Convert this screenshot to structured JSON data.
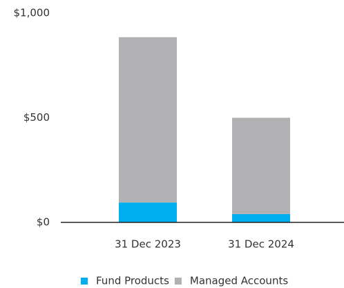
{
  "chart_data": {
    "type": "stacked-bar",
    "categories": [
      "31 Dec 2023",
      "31 Dec 2024"
    ],
    "series": [
      {
        "name": "Fund Products",
        "color": "#00aeef",
        "values": [
          95,
          40
        ]
      },
      {
        "name": "Managed Accounts",
        "color": "#b1b1b4",
        "values": [
          790,
          460
        ]
      }
    ],
    "ylim": [
      0,
      1000
    ],
    "yticks": [
      {
        "value": 0,
        "label": "$0"
      },
      {
        "value": 500,
        "label": "$500"
      },
      {
        "value": 1000,
        "label": "$1,000"
      }
    ],
    "grid": false,
    "legend": "bottom"
  }
}
